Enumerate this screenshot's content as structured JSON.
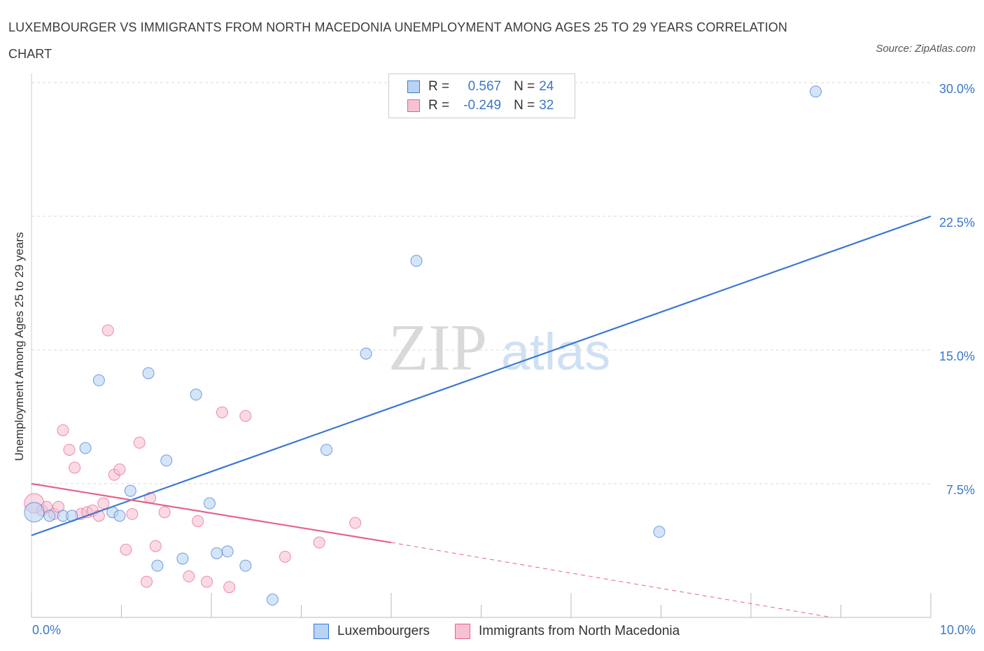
{
  "header": {
    "title": "LUXEMBOURGER VS IMMIGRANTS FROM NORTH MACEDONIA UNEMPLOYMENT AMONG AGES 25 TO 29 YEARS CORRELATION CHART",
    "source": "Source: ZipAtlas.com"
  },
  "watermark": {
    "zip": "ZIP",
    "atlas": "atlas"
  },
  "legend": {
    "series1": {
      "r_label": "R =",
      "r_value": "0.567",
      "n_label": "N =",
      "n_value": "24"
    },
    "series2": {
      "r_label": "R =",
      "r_value": "-0.249",
      "n_label": "N =",
      "n_value": "32"
    }
  },
  "bottom_legend": {
    "series1": "Luxembourgers",
    "series2": "Immigrants from North Macedonia"
  },
  "colors": {
    "blue": "#3a78d4",
    "blue_fill": "#b9d3f3",
    "pink": "#e4638e",
    "pink_fill": "#f6c2d2",
    "grid": "#d9d9d9",
    "tick_label": "#3a78c9"
  },
  "chart_data": {
    "type": "scatter",
    "title": "LUXEMBOURGER VS IMMIGRANTS FROM NORTH MACEDONIA UNEMPLOYMENT AMONG AGES 25 TO 29 YEARS CORRELATION CHART",
    "xlabel": "",
    "ylabel": "Unemployment Among Ages 25 to 29 years",
    "xlim": [
      0,
      10
    ],
    "ylim": [
      0,
      30
    ],
    "x_tick_labels": [
      "0.0%",
      "10.0%"
    ],
    "y_ticks": [
      7.5,
      15,
      22.5,
      30
    ],
    "y_tick_labels": [
      "7.5%",
      "15.0%",
      "22.5%",
      "30.0%"
    ],
    "grid": true,
    "legend_position": "top-center",
    "series": [
      {
        "name": "Luxembourgers",
        "color": "#3a78d4",
        "points": [
          [
            0.03,
            5.9
          ],
          [
            0.2,
            5.7
          ],
          [
            0.35,
            5.7
          ],
          [
            0.45,
            5.7
          ],
          [
            0.6,
            9.5
          ],
          [
            0.75,
            13.3
          ],
          [
            0.9,
            5.9
          ],
          [
            0.98,
            5.7
          ],
          [
            1.1,
            7.1
          ],
          [
            1.3,
            13.7
          ],
          [
            1.4,
            2.9
          ],
          [
            1.5,
            8.8
          ],
          [
            1.68,
            3.3
          ],
          [
            1.83,
            12.5
          ],
          [
            1.98,
            6.4
          ],
          [
            2.06,
            3.6
          ],
          [
            2.18,
            3.7
          ],
          [
            2.38,
            2.9
          ],
          [
            2.68,
            1.0
          ],
          [
            3.28,
            9.4
          ],
          [
            3.72,
            14.8
          ],
          [
            4.28,
            20.0
          ],
          [
            6.98,
            4.8
          ],
          [
            8.72,
            29.5
          ]
        ],
        "trend": {
          "x": [
            0,
            10
          ],
          "y": [
            4.6,
            22.5
          ]
        }
      },
      {
        "name": "Immigrants from North Macedonia",
        "color": "#e4638e",
        "points": [
          [
            0.03,
            6.4
          ],
          [
            0.12,
            6.0
          ],
          [
            0.17,
            6.2
          ],
          [
            0.25,
            5.8
          ],
          [
            0.3,
            6.2
          ],
          [
            0.35,
            10.5
          ],
          [
            0.42,
            9.4
          ],
          [
            0.48,
            8.4
          ],
          [
            0.55,
            5.8
          ],
          [
            0.62,
            5.9
          ],
          [
            0.68,
            6.0
          ],
          [
            0.75,
            5.7
          ],
          [
            0.8,
            6.4
          ],
          [
            0.85,
            16.1
          ],
          [
            0.92,
            8.0
          ],
          [
            0.98,
            8.3
          ],
          [
            1.05,
            3.8
          ],
          [
            1.12,
            5.8
          ],
          [
            1.2,
            9.8
          ],
          [
            1.28,
            2.0
          ],
          [
            1.32,
            6.7
          ],
          [
            1.38,
            4.0
          ],
          [
            1.48,
            5.9
          ],
          [
            1.75,
            2.3
          ],
          [
            1.85,
            5.4
          ],
          [
            1.95,
            2.0
          ],
          [
            2.12,
            11.5
          ],
          [
            2.2,
            1.7
          ],
          [
            2.38,
            11.3
          ],
          [
            2.82,
            3.4
          ],
          [
            3.2,
            4.2
          ],
          [
            3.6,
            5.3
          ]
        ],
        "trend": {
          "x": [
            0,
            4.0
          ],
          "y": [
            7.5,
            4.2
          ]
        },
        "trend_dashed": {
          "x": [
            4.0,
            8.9
          ],
          "y": [
            4.2,
            0.0
          ]
        }
      }
    ]
  }
}
